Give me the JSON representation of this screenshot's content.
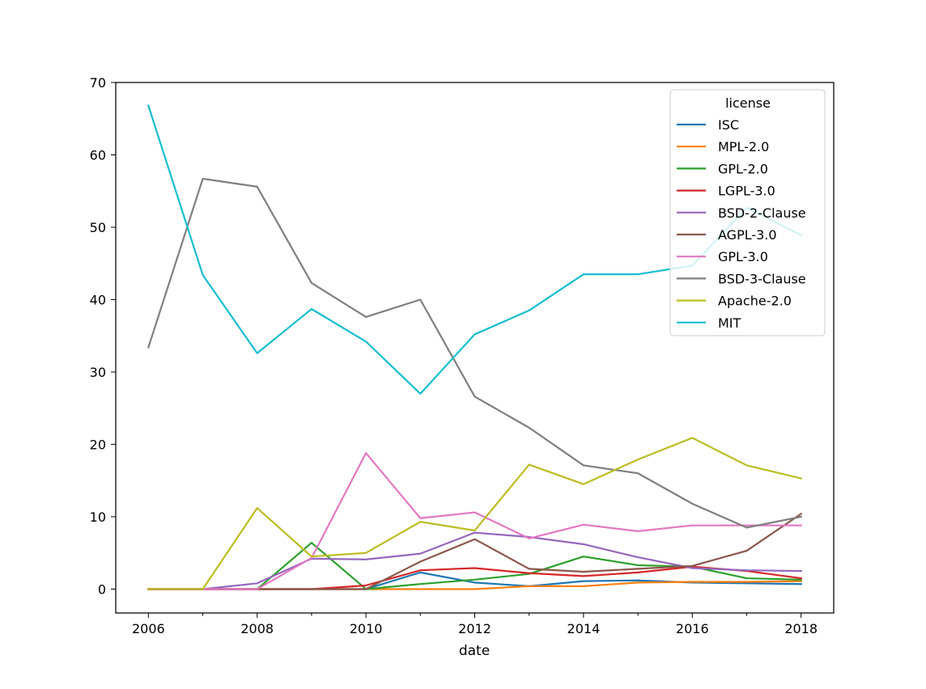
{
  "chart_data": {
    "type": "line",
    "xlabel": "date",
    "ylabel": "",
    "xlim": [
      2005.4,
      2018.6
    ],
    "ylim": [
      -3.3,
      70
    ],
    "xticks": [
      2006,
      2008,
      2010,
      2012,
      2014,
      2016,
      2018
    ],
    "xtick_labels": [
      "2006",
      "2008",
      "2010",
      "2012",
      "2014",
      "2016",
      "2018"
    ],
    "minor_xticks": [
      2007,
      2009,
      2011,
      2013,
      2015,
      2017
    ],
    "yticks": [
      0,
      10,
      20,
      30,
      40,
      50,
      60,
      70
    ],
    "ytick_labels": [
      "0",
      "10",
      "20",
      "30",
      "40",
      "50",
      "60",
      "70"
    ],
    "grid": false,
    "legend": {
      "title": "license",
      "placement": "top-right"
    },
    "x": [
      2006,
      2007,
      2008,
      2009,
      2010,
      2011,
      2012,
      2013,
      2014,
      2015,
      2016,
      2017,
      2018
    ],
    "series": [
      {
        "name": "ISC",
        "color": "#1f77b4",
        "values": [
          0,
          0,
          0,
          0,
          0,
          2.3,
          0.9,
          0.4,
          1.1,
          1.2,
          0.9,
          0.8,
          0.7
        ]
      },
      {
        "name": "MPL-2.0",
        "color": "#ff7f0e",
        "values": [
          0,
          0,
          0,
          0,
          0,
          0,
          0,
          0.4,
          0.4,
          0.9,
          1.0,
          1.0,
          1.1
        ]
      },
      {
        "name": "GPL-2.0",
        "color": "#2ca02c",
        "values": [
          0,
          0,
          0,
          6.4,
          0,
          0.7,
          1.3,
          2.1,
          4.5,
          3.3,
          3.1,
          1.5,
          1.3
        ]
      },
      {
        "name": "LGPL-3.0",
        "color": "#d62728",
        "values": [
          0,
          0,
          0,
          0,
          0.5,
          2.6,
          2.9,
          2.2,
          1.8,
          2.3,
          3.1,
          2.5,
          1.5
        ]
      },
      {
        "name": "BSD-2-Clause",
        "color": "#9467bd",
        "values": [
          0,
          0,
          0.8,
          4.2,
          4.1,
          4.9,
          7.8,
          7.2,
          6.2,
          4.4,
          2.9,
          2.6,
          2.5
        ]
      },
      {
        "name": "AGPL-3.0",
        "color": "#8c564b",
        "values": [
          0,
          0,
          0,
          0,
          0,
          3.8,
          6.9,
          2.8,
          2.4,
          2.8,
          3.2,
          5.3,
          10.4
        ]
      },
      {
        "name": "GPL-3.0",
        "color": "#e377c2",
        "values": [
          0,
          0,
          0,
          4.3,
          18.8,
          9.8,
          10.6,
          7.0,
          8.9,
          8.0,
          8.8,
          8.8,
          8.8
        ]
      },
      {
        "name": "BSD-3-Clause",
        "color": "#7f7f7f",
        "values": [
          33.4,
          56.7,
          55.6,
          42.3,
          37.6,
          40.0,
          26.6,
          22.3,
          17.1,
          16.0,
          11.8,
          8.5,
          10.0
        ]
      },
      {
        "name": "Apache-2.0",
        "color": "#bcbd22",
        "values": [
          0,
          0,
          11.2,
          4.5,
          5.0,
          9.3,
          8.1,
          17.2,
          14.5,
          17.9,
          20.9,
          17.1,
          15.3
        ]
      },
      {
        "name": "MIT",
        "color": "#17becf",
        "values": [
          66.8,
          43.4,
          32.6,
          38.7,
          34.2,
          27.0,
          35.2,
          38.5,
          43.5,
          43.5,
          44.7,
          52.7,
          48.9
        ]
      }
    ]
  }
}
